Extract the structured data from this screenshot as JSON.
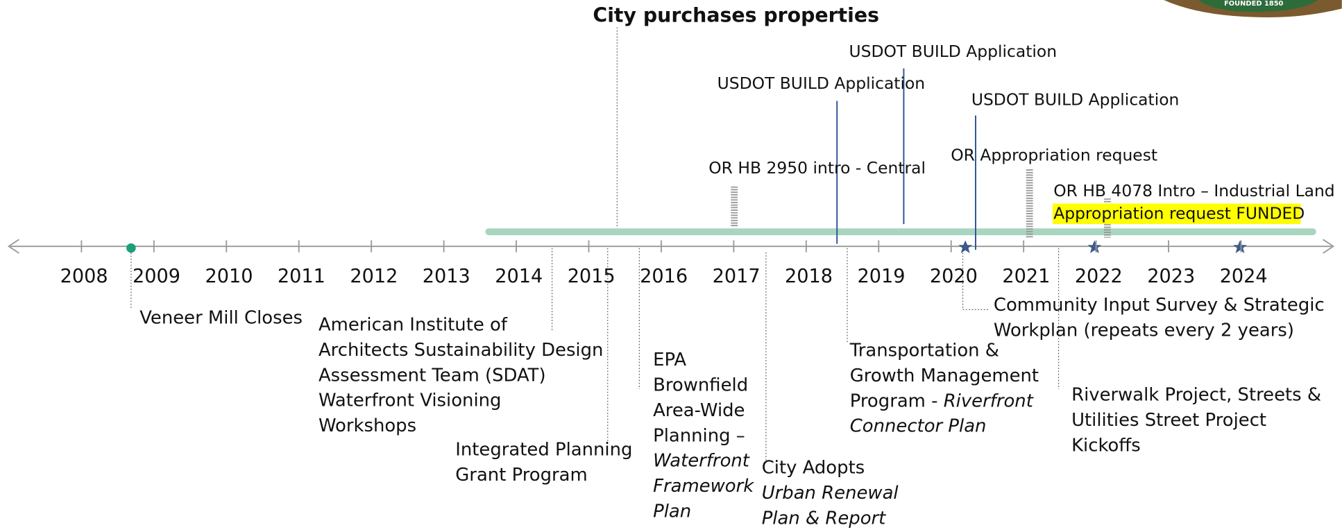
{
  "title": "City purchases properties",
  "logo": "FOUNDED 1850",
  "years": [
    2008,
    2009,
    2010,
    2011,
    2012,
    2013,
    2014,
    2015,
    2016,
    2017,
    2018,
    2019,
    2020,
    2021,
    2022,
    2023,
    2024
  ],
  "above": [
    {
      "lines": [
        "USDOT BUILD Application"
      ]
    },
    {
      "lines": [
        "USDOT BUILD Application"
      ]
    },
    {
      "lines": [
        "USDOT BUILD Application"
      ]
    },
    {
      "lines": [
        "OR HB 2950 intro - Central"
      ]
    },
    {
      "lines": [
        "OR Appropriation request"
      ]
    },
    {
      "lines": [
        "OR HB 4078 Intro – Industrial Land",
        "Appropriation request FUNDED"
      ]
    }
  ],
  "below": [
    {
      "lines": [
        "Veneer Mill Closes"
      ]
    },
    {
      "lines": [
        "American Institute of",
        "Architects Sustainability Design",
        "Assessment Team (SDAT)",
        "Waterfront Visioning",
        "Workshops"
      ]
    },
    {
      "lines": [
        "Integrated Planning",
        "Grant Program"
      ]
    },
    {
      "lines": [
        "EPA",
        "Brownfield",
        "Area-Wide",
        "Planning –",
        {
          "text": "Waterfront",
          "italic": true
        },
        {
          "text": "Framework",
          "italic": true
        },
        {
          "text": "Plan",
          "italic": true
        }
      ]
    },
    {
      "lines": [
        "City Adopts",
        {
          "text": "Urban Renewal",
          "italic": true
        },
        {
          "text": "Plan & Report",
          "italic": true
        }
      ]
    },
    {
      "lines": [
        "Transportation &",
        "Growth Management",
        [
          "Program -  ",
          {
            "text": "Riverfront",
            "italic": true
          }
        ],
        {
          "text": "Connector Plan",
          "italic": true
        }
      ]
    },
    {
      "lines": [
        "Community Input Survey & Strategic",
        "Workplan (repeats every 2 years)"
      ]
    },
    {
      "lines": [
        "Riverwalk Project, Streets &",
        "Utilities Street Project",
        "Kickoffs"
      ]
    }
  ]
}
